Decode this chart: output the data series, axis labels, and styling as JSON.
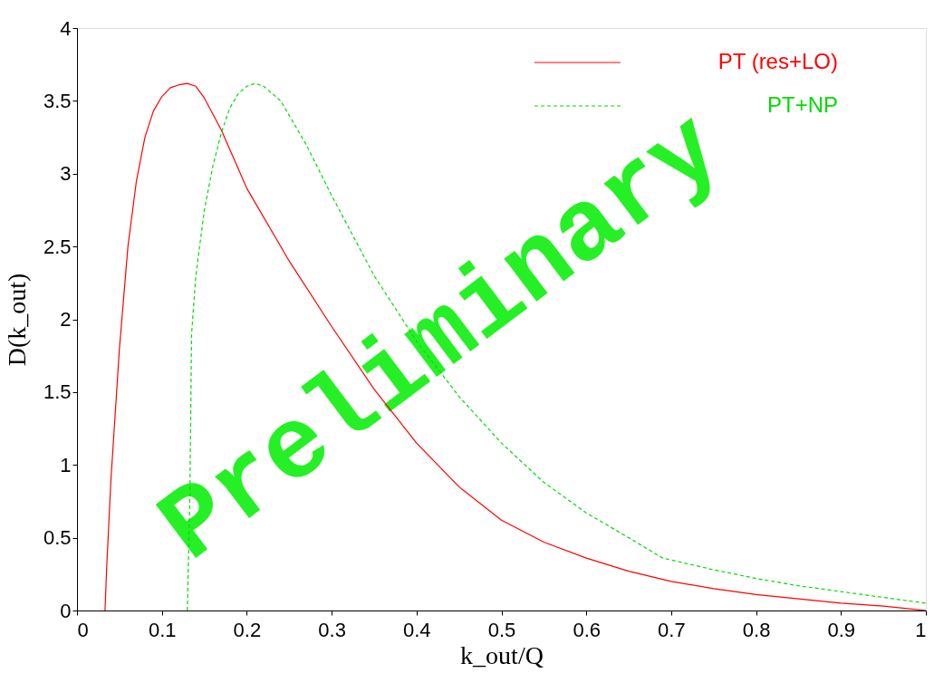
{
  "chart_data": {
    "type": "line",
    "xlabel": "k_out/Q",
    "ylabel": "D(k_out)",
    "xlim": [
      0,
      1
    ],
    "xticks": [
      0,
      0.1,
      0.2,
      0.3,
      0.4,
      0.5,
      0.6,
      0.7,
      0.8,
      0.9,
      1
    ],
    "ylim": [
      0,
      4
    ],
    "yticks": [
      0,
      0.5,
      1,
      1.5,
      2,
      2.5,
      3,
      3.5,
      4
    ],
    "grid": false,
    "legend": "top right",
    "series": [
      {
        "name": "PT (res+LO)",
        "color": "#ff0000",
        "line_style": "solid",
        "x": [
          0.033,
          0.035,
          0.04,
          0.05,
          0.06,
          0.07,
          0.08,
          0.09,
          0.1,
          0.11,
          0.12,
          0.13,
          0.14,
          0.15,
          0.17,
          0.2,
          0.25,
          0.3,
          0.35,
          0.4,
          0.45,
          0.5,
          0.55,
          0.6,
          0.65,
          0.7,
          0.75,
          0.8,
          0.85,
          0.9,
          0.95,
          1.0
        ],
        "values": [
          0,
          0.3,
          0.9,
          1.8,
          2.5,
          2.95,
          3.25,
          3.43,
          3.53,
          3.59,
          3.61,
          3.62,
          3.6,
          3.52,
          3.3,
          2.9,
          2.4,
          1.95,
          1.52,
          1.15,
          0.85,
          0.62,
          0.47,
          0.36,
          0.27,
          0.2,
          0.15,
          0.11,
          0.08,
          0.05,
          0.03,
          0.0
        ]
      },
      {
        "name": "PT+NP",
        "color": "#00dd00",
        "line_style": "dashed",
        "x": [
          0.13,
          0.133,
          0.135,
          0.14,
          0.15,
          0.16,
          0.17,
          0.18,
          0.19,
          0.2,
          0.21,
          0.22,
          0.24,
          0.27,
          0.3,
          0.35,
          0.4,
          0.45,
          0.5,
          0.55,
          0.6,
          0.65,
          0.69,
          0.75,
          0.8,
          0.85,
          0.9,
          0.95,
          1.0
        ],
        "values": [
          0,
          0.8,
          1.9,
          2.3,
          2.75,
          3.05,
          3.28,
          3.45,
          3.55,
          3.6,
          3.62,
          3.6,
          3.5,
          3.2,
          2.85,
          2.3,
          1.85,
          1.47,
          1.15,
          0.88,
          0.67,
          0.5,
          0.36,
          0.28,
          0.22,
          0.17,
          0.13,
          0.09,
          0.05
        ]
      }
    ],
    "annotations": [
      "Preliminary"
    ]
  }
}
